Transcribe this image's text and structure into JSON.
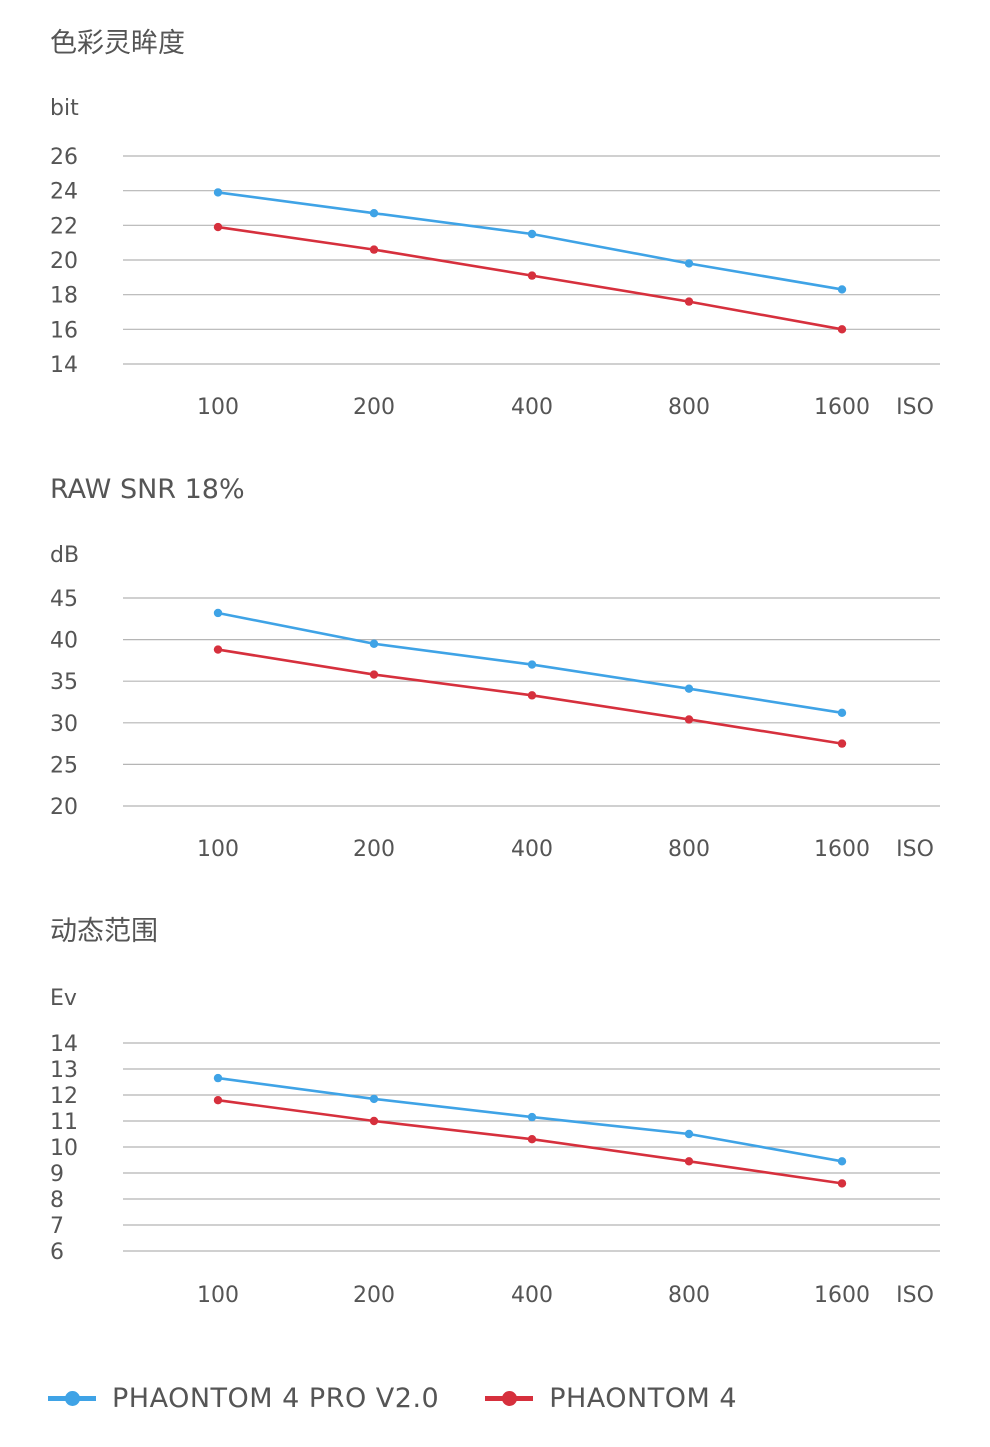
{
  "colors": {
    "series_1": "#3fa3e6",
    "series_2": "#d6303d",
    "grid": "#b5b5b5",
    "text": "#555555"
  },
  "legend": {
    "items": [
      {
        "label": "PHAONTOM 4 PRO V2.0",
        "color": "#3fa3e6"
      },
      {
        "label": "PHAONTOM 4",
        "color": "#d6303d"
      }
    ]
  },
  "chart_data": [
    {
      "type": "line",
      "title": "色彩灵眸度",
      "ylabel": "bit",
      "xlabel": "ISO",
      "categories": [
        "100",
        "200",
        "400",
        "800",
        "1600"
      ],
      "yticks": [
        26,
        24,
        22,
        20,
        18,
        16,
        14
      ],
      "ylim": [
        14,
        26
      ],
      "grid": true,
      "series": [
        {
          "name": "PHAONTOM 4 PRO V2.0",
          "values": [
            23.9,
            22.7,
            21.5,
            19.8,
            18.3
          ]
        },
        {
          "name": "PHAONTOM 4",
          "values": [
            21.9,
            20.6,
            19.1,
            17.6,
            16.0
          ]
        }
      ]
    },
    {
      "type": "line",
      "title": "RAW SNR 18%",
      "ylabel": "dB",
      "xlabel": "ISO",
      "categories": [
        "100",
        "200",
        "400",
        "800",
        "1600"
      ],
      "yticks": [
        45,
        40,
        35,
        30,
        25,
        20
      ],
      "ylim": [
        20,
        45
      ],
      "grid": true,
      "series": [
        {
          "name": "PHAONTOM 4 PRO V2.0",
          "values": [
            43.2,
            39.5,
            37.0,
            34.1,
            31.2
          ]
        },
        {
          "name": "PHAONTOM 4",
          "values": [
            38.8,
            35.8,
            33.3,
            30.4,
            27.5
          ]
        }
      ]
    },
    {
      "type": "line",
      "title": "动态范围",
      "ylabel": "Ev",
      "xlabel": "ISO",
      "categories": [
        "100",
        "200",
        "400",
        "800",
        "1600"
      ],
      "yticks": [
        14,
        13,
        12,
        11,
        10,
        9,
        8,
        7,
        6
      ],
      "ylim": [
        6,
        14
      ],
      "grid": true,
      "series": [
        {
          "name": "PHAONTOM 4 PRO V2.0",
          "values": [
            12.65,
            11.85,
            11.15,
            10.5,
            9.45
          ]
        },
        {
          "name": "PHAONTOM 4",
          "values": [
            11.8,
            11.0,
            10.3,
            9.45,
            8.6
          ]
        }
      ]
    }
  ]
}
